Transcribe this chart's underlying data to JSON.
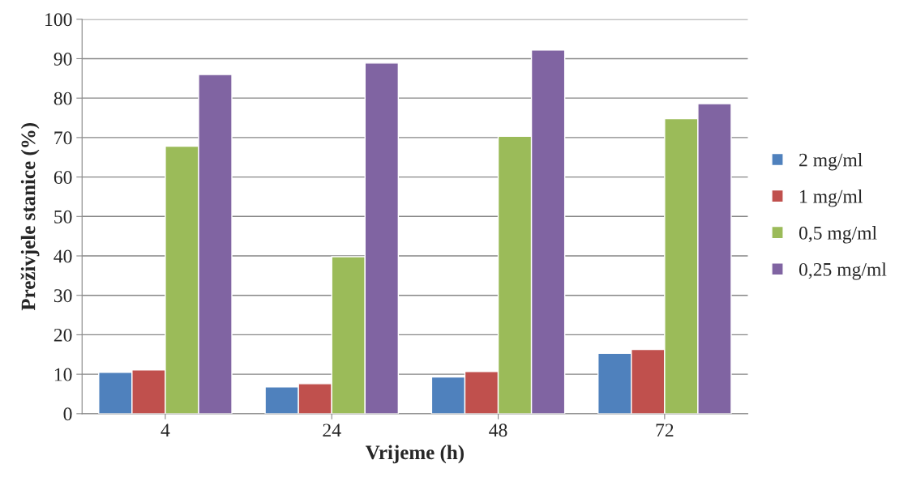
{
  "chart_data": {
    "type": "bar",
    "xlabel": "Vrijeme (h)",
    "ylabel": "Preživjele stanice (%)",
    "categories": [
      "4",
      "24",
      "48",
      "72"
    ],
    "series": [
      {
        "name": "2 mg/ml",
        "color": "#4f81bd",
        "values": [
          10.5,
          6.8,
          9.3,
          15.3
        ]
      },
      {
        "name": "1 mg/ml",
        "color": "#c0504d",
        "values": [
          11.1,
          7.6,
          10.7,
          16.3
        ]
      },
      {
        "name": "0,5 mg/ml",
        "color": "#9bbb59",
        "values": [
          67.8,
          39.8,
          70.3,
          74.8
        ]
      },
      {
        "name": "0,25 mg/ml",
        "color": "#8064a2",
        "values": [
          86.0,
          88.9,
          92.2,
          78.6
        ]
      }
    ],
    "ylim": [
      0,
      100
    ],
    "yticks": [
      0,
      10,
      20,
      30,
      40,
      50,
      60,
      70,
      80,
      90,
      100
    ],
    "grid": "y",
    "legend": "right"
  }
}
